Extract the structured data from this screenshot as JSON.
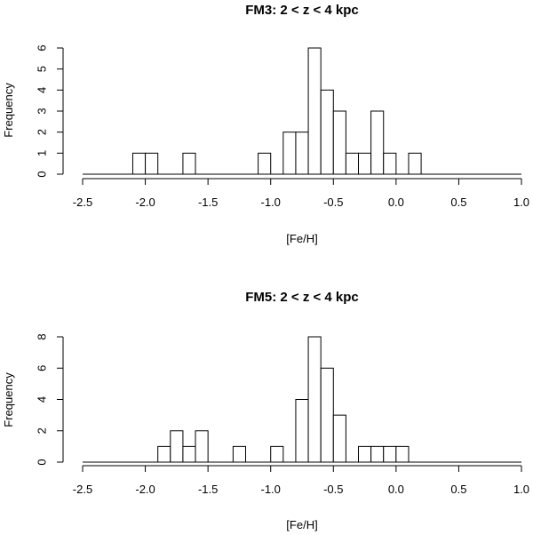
{
  "chart_data": [
    {
      "type": "bar",
      "title": "FM3:  2 < z < 4 kpc",
      "xlabel": "[Fe/H]",
      "ylabel": "Frequency",
      "xlim": [
        -2.5,
        1.0
      ],
      "ylim": [
        0,
        6
      ],
      "xticks": [
        "-2.5",
        "-2.0",
        "-1.5",
        "-1.0",
        "-0.5",
        "0.0",
        "0.5",
        "1.0"
      ],
      "yticks": [
        "0",
        "1",
        "2",
        "3",
        "4",
        "5",
        "6"
      ],
      "bin_width": 0.1,
      "bins": [
        {
          "start": -2.1,
          "count": 1
        },
        {
          "start": -2.0,
          "count": 1
        },
        {
          "start": -1.7,
          "count": 1
        },
        {
          "start": -1.1,
          "count": 1
        },
        {
          "start": -0.9,
          "count": 2
        },
        {
          "start": -0.8,
          "count": 2
        },
        {
          "start": -0.7,
          "count": 6
        },
        {
          "start": -0.6,
          "count": 4
        },
        {
          "start": -0.5,
          "count": 3
        },
        {
          "start": -0.4,
          "count": 1
        },
        {
          "start": -0.3,
          "count": 1
        },
        {
          "start": -0.2,
          "count": 3
        },
        {
          "start": -0.1,
          "count": 1
        },
        {
          "start": 0.1,
          "count": 1
        }
      ]
    },
    {
      "type": "bar",
      "title": "FM5:  2 < z < 4 kpc",
      "xlabel": "[Fe/H]",
      "ylabel": "Frequency",
      "xlim": [
        -2.5,
        1.0
      ],
      "ylim": [
        0,
        8
      ],
      "xticks": [
        "-2.5",
        "-2.0",
        "-1.5",
        "-1.0",
        "-0.5",
        "0.0",
        "0.5",
        "1.0"
      ],
      "yticks": [
        "0",
        "2",
        "4",
        "6",
        "8"
      ],
      "bin_width": 0.1,
      "bins": [
        {
          "start": -1.9,
          "count": 1
        },
        {
          "start": -1.8,
          "count": 2
        },
        {
          "start": -1.7,
          "count": 1
        },
        {
          "start": -1.6,
          "count": 2
        },
        {
          "start": -1.3,
          "count": 1
        },
        {
          "start": -1.0,
          "count": 1
        },
        {
          "start": -0.8,
          "count": 4
        },
        {
          "start": -0.7,
          "count": 8
        },
        {
          "start": -0.6,
          "count": 6
        },
        {
          "start": -0.5,
          "count": 3
        },
        {
          "start": -0.3,
          "count": 1
        },
        {
          "start": -0.2,
          "count": 1
        },
        {
          "start": -0.1,
          "count": 1
        },
        {
          "start": 0.0,
          "count": 1
        }
      ]
    }
  ]
}
